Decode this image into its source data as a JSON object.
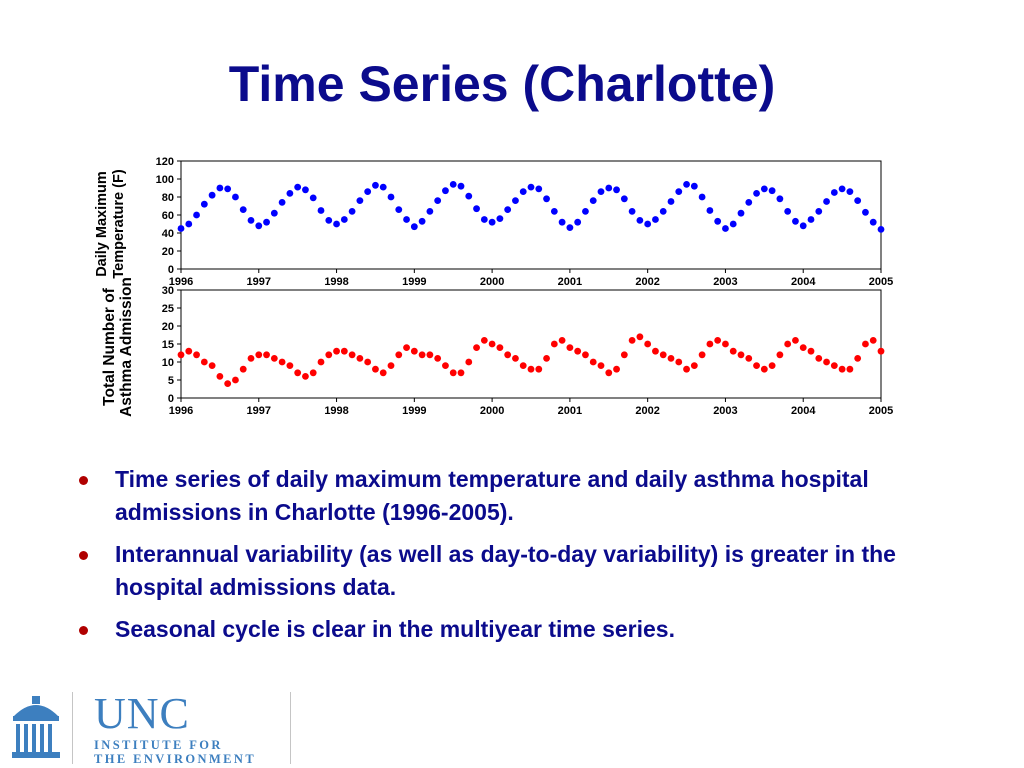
{
  "slide": {
    "title": "Time Series (Charlotte)",
    "bullets": [
      "Time series of daily maximum temperature and daily asthma hospital admissions in Charlotte (1996-2005).",
      "Interannual variability (as well as day-to-day variability) is greater in the hospital admissions data.",
      "Seasonal cycle is clear in the multiyear time series."
    ],
    "bullet_color": "#b00000",
    "text_color": "#0b0b8c"
  },
  "logo": {
    "name": "UNC",
    "line1": "INSTITUTE FOR",
    "line2": "THE ENVIRONMENT",
    "icon": "old-well-icon",
    "color": "#3d7fbf"
  },
  "chart_data": [
    {
      "type": "scatter",
      "ylabel_line1": "Daily Maximum",
      "ylabel_line2": "Temperature (F)",
      "xlim": [
        1996,
        2005
      ],
      "ylim": [
        0,
        120
      ],
      "x_ticks": [
        "1996",
        "1997",
        "1998",
        "1999",
        "2000",
        "2001",
        "2002",
        "2003",
        "2004",
        "2005"
      ],
      "y_ticks": [
        "0",
        "20",
        "40",
        "60",
        "80",
        "100",
        "120"
      ],
      "color": "#0000ff",
      "grid": false,
      "series": [
        {
          "x": [
            1996.0,
            1996.1,
            1996.2,
            1996.3,
            1996.4,
            1996.5,
            1996.6,
            1996.7,
            1996.8,
            1996.9,
            1997.0,
            1997.1,
            1997.2,
            1997.3,
            1997.4,
            1997.5,
            1997.6,
            1997.7,
            1997.8,
            1997.9,
            1998.0,
            1998.1,
            1998.2,
            1998.3,
            1998.4,
            1998.5,
            1998.6,
            1998.7,
            1998.8,
            1998.9,
            1999.0,
            1999.1,
            1999.2,
            1999.3,
            1999.4,
            1999.5,
            1999.6,
            1999.7,
            1999.8,
            1999.9,
            2000.0,
            2000.1,
            2000.2,
            2000.3,
            2000.4,
            2000.5,
            2000.6,
            2000.7,
            2000.8,
            2000.9,
            2001.0,
            2001.1,
            2001.2,
            2001.3,
            2001.4,
            2001.5,
            2001.6,
            2001.7,
            2001.8,
            2001.9,
            2002.0,
            2002.1,
            2002.2,
            2002.3,
            2002.4,
            2002.5,
            2002.6,
            2002.7,
            2002.8,
            2002.9,
            2003.0,
            2003.1,
            2003.2,
            2003.3,
            2003.4,
            2003.5,
            2003.6,
            2003.7,
            2003.8,
            2003.9,
            2004.0,
            2004.1,
            2004.2,
            2004.3,
            2004.4,
            2004.5,
            2004.6,
            2004.7,
            2004.8,
            2004.9,
            2005.0
          ],
          "y": [
            45,
            50,
            60,
            72,
            82,
            90,
            89,
            80,
            66,
            54,
            48,
            52,
            62,
            74,
            84,
            91,
            88,
            79,
            65,
            54,
            50,
            55,
            64,
            76,
            86,
            93,
            91,
            80,
            66,
            55,
            47,
            53,
            64,
            76,
            87,
            94,
            92,
            81,
            67,
            55,
            52,
            56,
            66,
            76,
            86,
            91,
            89,
            78,
            64,
            52,
            46,
            52,
            64,
            76,
            86,
            90,
            88,
            78,
            64,
            54,
            50,
            55,
            64,
            75,
            86,
            94,
            92,
            80,
            65,
            53,
            45,
            50,
            62,
            74,
            84,
            89,
            87,
            78,
            64,
            53,
            48,
            55,
            64,
            75,
            85,
            89,
            86,
            76,
            63,
            52,
            44
          ]
        }
      ]
    },
    {
      "type": "scatter",
      "ylabel_line1": "Total Number of",
      "ylabel_line2": "Asthma Admission",
      "xlim": [
        1996,
        2005
      ],
      "ylim": [
        0,
        30
      ],
      "x_ticks": [
        "1996",
        "1997",
        "1998",
        "1999",
        "2000",
        "2001",
        "2002",
        "2003",
        "2004",
        "2005"
      ],
      "y_ticks": [
        "0",
        "5",
        "10",
        "15",
        "20",
        "25",
        "30"
      ],
      "color": "#ff0000",
      "grid": false,
      "series": [
        {
          "x": [
            1996.0,
            1996.1,
            1996.2,
            1996.3,
            1996.4,
            1996.5,
            1996.6,
            1996.7,
            1996.8,
            1996.9,
            1997.0,
            1997.1,
            1997.2,
            1997.3,
            1997.4,
            1997.5,
            1997.6,
            1997.7,
            1997.8,
            1997.9,
            1998.0,
            1998.1,
            1998.2,
            1998.3,
            1998.4,
            1998.5,
            1998.6,
            1998.7,
            1998.8,
            1998.9,
            1999.0,
            1999.1,
            1999.2,
            1999.3,
            1999.4,
            1999.5,
            1999.6,
            1999.7,
            1999.8,
            1999.9,
            2000.0,
            2000.1,
            2000.2,
            2000.3,
            2000.4,
            2000.5,
            2000.6,
            2000.7,
            2000.8,
            2000.9,
            2001.0,
            2001.1,
            2001.2,
            2001.3,
            2001.4,
            2001.5,
            2001.6,
            2001.7,
            2001.8,
            2001.9,
            2002.0,
            2002.1,
            2002.2,
            2002.3,
            2002.4,
            2002.5,
            2002.6,
            2002.7,
            2002.8,
            2002.9,
            2003.0,
            2003.1,
            2003.2,
            2003.3,
            2003.4,
            2003.5,
            2003.6,
            2003.7,
            2003.8,
            2003.9,
            2004.0,
            2004.1,
            2004.2,
            2004.3,
            2004.4,
            2004.5,
            2004.6,
            2004.7,
            2004.8,
            2004.9,
            2005.0
          ],
          "y": [
            12,
            13,
            12,
            10,
            9,
            6,
            4,
            5,
            8,
            11,
            12,
            12,
            11,
            10,
            9,
            7,
            6,
            7,
            10,
            12,
            13,
            13,
            12,
            11,
            10,
            8,
            7,
            9,
            12,
            14,
            13,
            12,
            12,
            11,
            9,
            7,
            7,
            10,
            14,
            16,
            15,
            14,
            12,
            11,
            9,
            8,
            8,
            11,
            15,
            16,
            14,
            13,
            12,
            10,
            9,
            7,
            8,
            12,
            16,
            17,
            15,
            13,
            12,
            11,
            10,
            8,
            9,
            12,
            15,
            16,
            15,
            13,
            12,
            11,
            9,
            8,
            9,
            12,
            15,
            16,
            14,
            13,
            11,
            10,
            9,
            8,
            8,
            11,
            15,
            16,
            13
          ]
        }
      ]
    }
  ]
}
